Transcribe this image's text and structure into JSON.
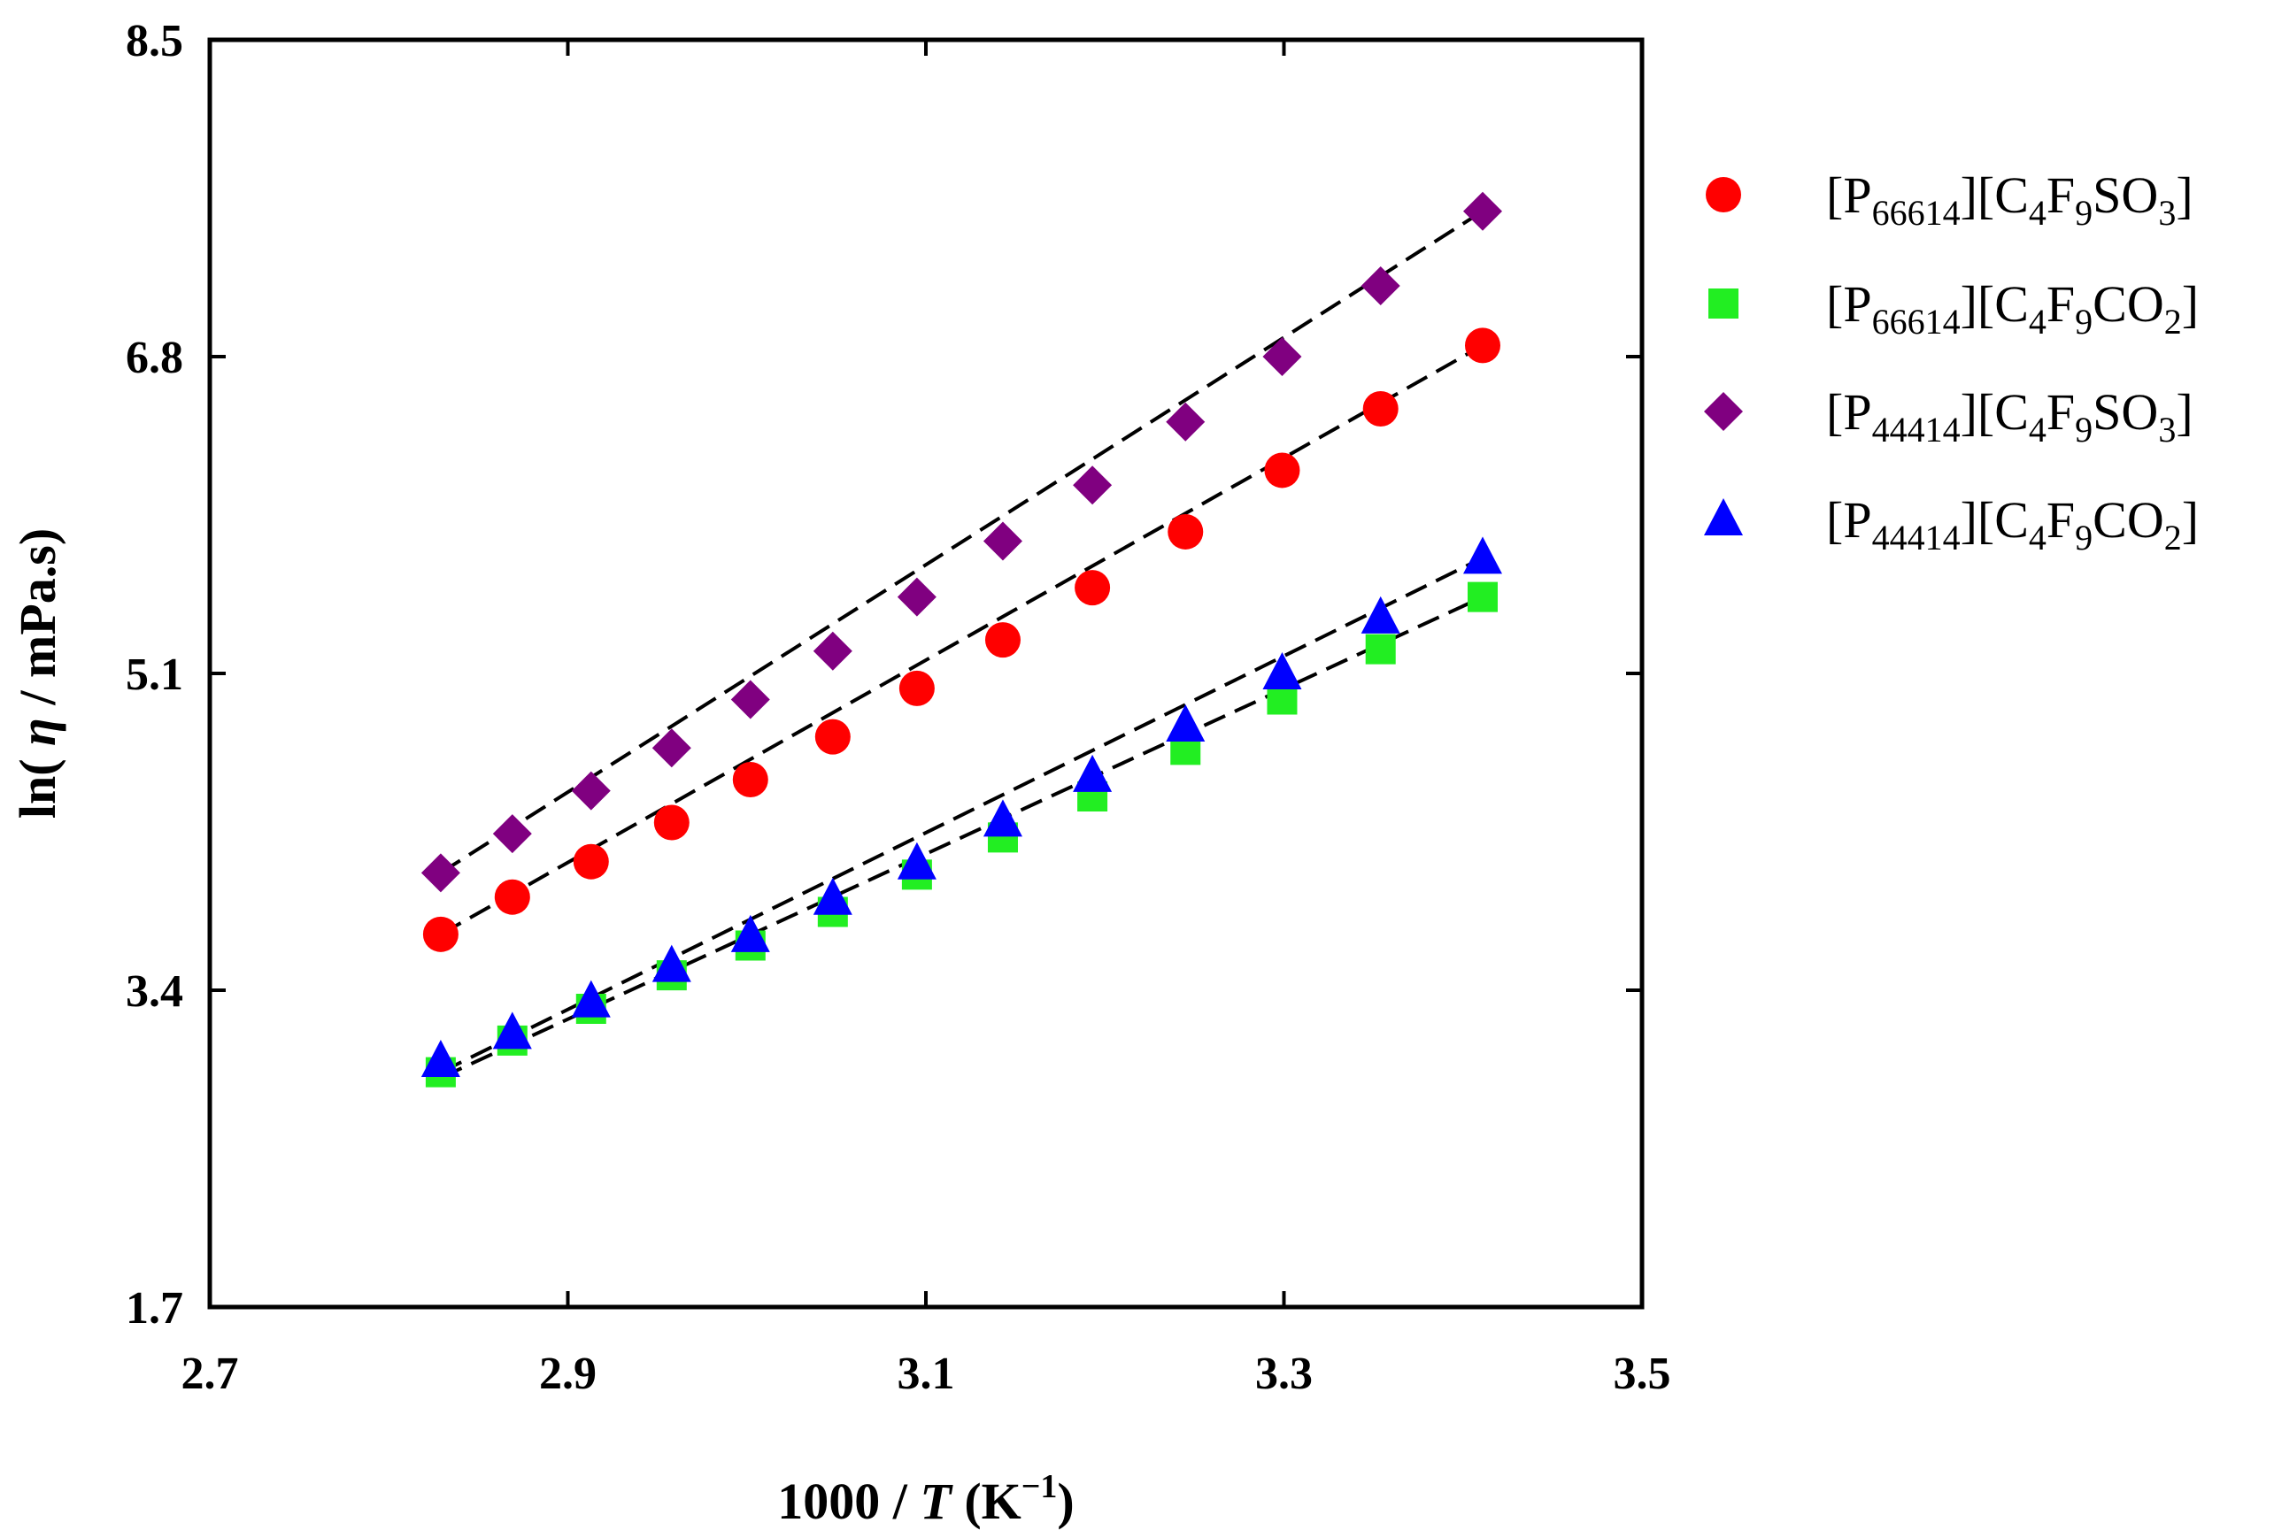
{
  "chart_data": {
    "type": "scatter",
    "title": "",
    "xlabel": {
      "prefix": "1000 / ",
      "var": "T",
      "unit_open": " (K",
      "unit_exp": "−1",
      "unit_close": ")"
    },
    "ylabel": {
      "prefix": "ln( ",
      "var": "η",
      "suffix": " / mPa.s)"
    },
    "xlim": [
      2.7,
      3.5
    ],
    "ylim": [
      1.7,
      8.5
    ],
    "x_ticks": [
      "2.7",
      "2.9",
      "3.1",
      "3.3",
      "3.5"
    ],
    "y_ticks": [
      "1.7",
      "3.4",
      "5.1",
      "6.8",
      "8.5"
    ],
    "fit_lines": "dashed",
    "legend_position": "right",
    "x": [
      2.829,
      2.869,
      2.913,
      2.958,
      3.002,
      3.048,
      3.095,
      3.143,
      3.193,
      3.245,
      3.299,
      3.354,
      3.411
    ],
    "series": [
      {
        "name": "[P66614][C4F9SO3]",
        "label_parts": [
          [
            "[P",
            "n"
          ],
          [
            "66614",
            "sub"
          ],
          [
            "][C",
            "n"
          ],
          [
            "4",
            "sub"
          ],
          [
            "F",
            "n"
          ],
          [
            "9",
            "sub"
          ],
          [
            "SO",
            "n"
          ],
          [
            "3",
            "sub"
          ],
          [
            "]",
            "n"
          ]
        ],
        "marker": "circle",
        "color": "#ff0000",
        "values": [
          3.7,
          3.9,
          4.09,
          4.3,
          4.53,
          4.76,
          5.02,
          5.28,
          5.56,
          5.86,
          6.19,
          6.52,
          6.86
        ],
        "fit": [
          3.7,
          6.86
        ]
      },
      {
        "name": "[P66614][C4F9CO2]",
        "label_parts": [
          [
            "[P",
            "n"
          ],
          [
            "66614",
            "sub"
          ],
          [
            "][C",
            "n"
          ],
          [
            "4",
            "sub"
          ],
          [
            "F",
            "n"
          ],
          [
            "9",
            "sub"
          ],
          [
            "CO",
            "n"
          ],
          [
            "2",
            "sub"
          ],
          [
            "]",
            "n"
          ]
        ],
        "marker": "square",
        "color": "#22ee22",
        "values": [
          2.96,
          3.13,
          3.3,
          3.48,
          3.64,
          3.82,
          4.02,
          4.22,
          4.44,
          4.69,
          4.96,
          5.23,
          5.51
        ],
        "fit": [
          2.93,
          5.51
        ]
      },
      {
        "name": "[P44414][C4F9SO3]",
        "label_parts": [
          [
            "[P",
            "n"
          ],
          [
            "44414",
            "sub"
          ],
          [
            "][C",
            "n"
          ],
          [
            "4",
            "sub"
          ],
          [
            "F",
            "n"
          ],
          [
            "9",
            "sub"
          ],
          [
            "SO",
            "n"
          ],
          [
            "3",
            "sub"
          ],
          [
            "]",
            "n"
          ]
        ],
        "marker": "diamond",
        "color": "#800080",
        "values": [
          4.03,
          4.24,
          4.47,
          4.7,
          4.96,
          5.22,
          5.51,
          5.81,
          6.11,
          6.45,
          6.8,
          7.18,
          7.58
        ],
        "fit": [
          4.03,
          7.58
        ]
      },
      {
        "name": "[P44414][C4F9CO2]",
        "label_parts": [
          [
            "[P",
            "n"
          ],
          [
            "44414",
            "sub"
          ],
          [
            "][C",
            "n"
          ],
          [
            "4",
            "sub"
          ],
          [
            "F",
            "n"
          ],
          [
            "9",
            "sub"
          ],
          [
            "CO",
            "n"
          ],
          [
            "2",
            "sub"
          ],
          [
            "]",
            "n"
          ]
        ],
        "marker": "triangle",
        "color": "#0000ff",
        "values": [
          3.02,
          3.17,
          3.34,
          3.53,
          3.69,
          3.89,
          4.08,
          4.31,
          4.55,
          4.82,
          5.1,
          5.4,
          5.72
        ],
        "fit": [
          2.96,
          5.72
        ]
      }
    ]
  }
}
